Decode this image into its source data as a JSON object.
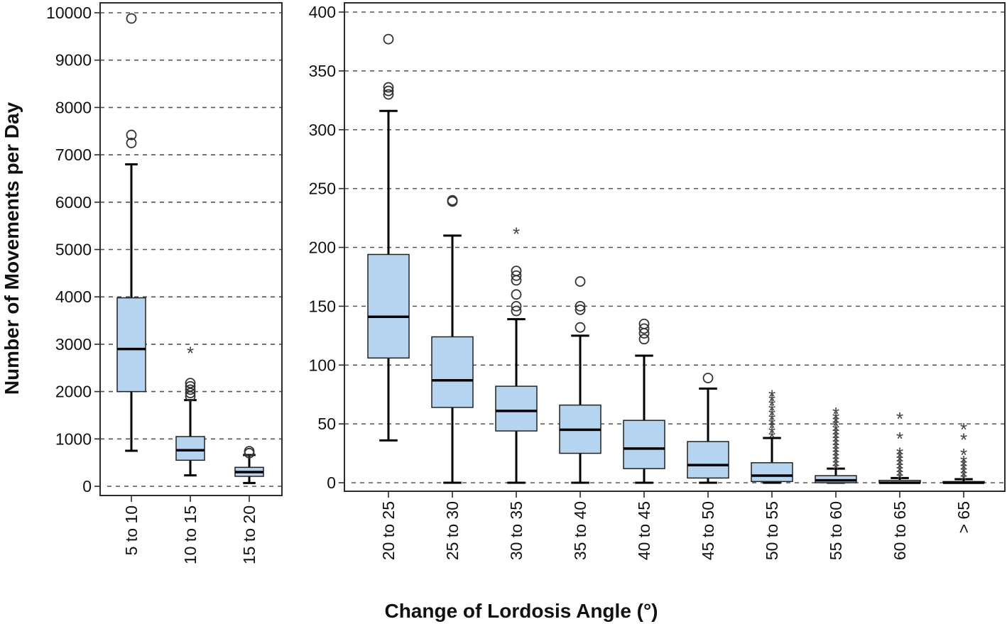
{
  "chart_data": [
    {
      "type": "box",
      "panel": "left",
      "ylabel": "Number of Movements per Day",
      "ylim": [
        0,
        10000
      ],
      "yticks": [
        "0",
        "1000",
        "2000",
        "3000",
        "4000",
        "5000",
        "6000",
        "7000",
        "8000",
        "9000",
        "10000"
      ],
      "grid": true,
      "categories": [
        "5 to 10",
        "10 to 15",
        "15 to 20"
      ],
      "boxes": [
        {
          "low": 750,
          "q1": 2000,
          "median": 2900,
          "q3": 3980,
          "high": 6800,
          "outliers": [
            7250,
            7420,
            9880
          ],
          "extremes": []
        },
        {
          "low": 230,
          "q1": 550,
          "median": 760,
          "q3": 1050,
          "high": 1820,
          "outliers": [
            1900,
            1970,
            2040,
            2110,
            2180
          ],
          "extremes": [
            2900
          ]
        },
        {
          "low": 70,
          "q1": 210,
          "median": 300,
          "q3": 400,
          "high": 660,
          "outliers": [
            700,
            740
          ],
          "extremes": []
        }
      ]
    },
    {
      "type": "box",
      "panel": "right",
      "xlabel": "Change of Lordosis Angle (°)",
      "ylim": [
        0,
        400
      ],
      "yticks": [
        "0",
        "50",
        "100",
        "150",
        "200",
        "250",
        "300",
        "350",
        "400"
      ],
      "grid": true,
      "categories": [
        "20 to 25",
        "25 to 30",
        "30 to 35",
        "35 to 40",
        "40 to 45",
        "45 to 50",
        "50 to 55",
        "55 to 60",
        "60 to 65",
        "> 65"
      ],
      "boxes": [
        {
          "low": 36,
          "q1": 106,
          "median": 141,
          "q3": 194,
          "high": 316,
          "outliers": [
            330,
            333,
            336,
            377
          ],
          "extremes": []
        },
        {
          "low": 0,
          "q1": 64,
          "median": 87,
          "q3": 124,
          "high": 210,
          "outliers": [
            239,
            240
          ],
          "extremes": []
        },
        {
          "low": 0,
          "q1": 44,
          "median": 61,
          "q3": 82,
          "high": 139,
          "outliers": [
            146,
            150,
            160,
            172,
            176,
            180
          ],
          "extremes": [
            215
          ]
        },
        {
          "low": 0,
          "q1": 25,
          "median": 45,
          "q3": 66,
          "high": 125,
          "outliers": [
            132,
            147,
            150,
            171
          ],
          "extremes": []
        },
        {
          "low": 0,
          "q1": 12,
          "median": 29,
          "q3": 53,
          "high": 108,
          "outliers": [
            122,
            127,
            131,
            135
          ],
          "extremes": []
        },
        {
          "low": 0,
          "q1": 4,
          "median": 15,
          "q3": 35,
          "high": 80,
          "outliers": [
            89
          ],
          "extremes": []
        },
        {
          "low": 0,
          "q1": 1,
          "median": 6,
          "q3": 17,
          "high": 38,
          "outliers": [],
          "extremes": [
            42,
            46,
            50,
            53,
            57,
            61,
            65,
            69,
            73,
            77
          ]
        },
        {
          "low": 0,
          "q1": 0,
          "median": 2,
          "q3": 6,
          "high": 12,
          "outliers": [],
          "extremes": [
            15,
            18,
            21,
            24,
            27,
            30,
            33,
            36,
            39,
            42,
            45,
            48,
            52,
            55,
            58,
            62
          ]
        },
        {
          "low": 0,
          "q1": 0,
          "median": 0,
          "q3": 2,
          "high": 4,
          "outliers": [],
          "extremes": [
            7,
            10,
            13,
            16,
            19,
            22,
            25,
            28,
            41,
            58
          ]
        },
        {
          "low": 0,
          "q1": 0,
          "median": 0,
          "q3": 1,
          "high": 3,
          "outliers": [],
          "extremes": [
            6,
            9,
            12,
            15,
            18,
            21,
            27,
            40,
            49
          ]
        }
      ]
    }
  ],
  "colors": {
    "box_fill": "#b5d4ef",
    "median": "#000000",
    "grid": "#555555"
  }
}
